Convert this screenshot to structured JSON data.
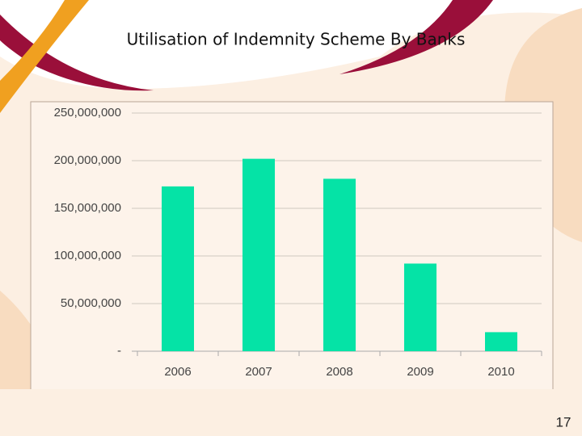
{
  "chart_data": {
    "type": "bar",
    "title": "Utilisation of Indemnity Scheme By Banks",
    "categories": [
      "2006",
      "2007",
      "2008",
      "2009",
      "2010"
    ],
    "values": [
      173000000,
      202000000,
      181000000,
      92000000,
      20000000
    ],
    "color": "#05e3a6",
    "ylim": [
      0,
      250000000
    ],
    "yticks": [
      {
        "value": 0,
        "label": "-"
      },
      {
        "value": 50000000,
        "label": "50,000,000"
      },
      {
        "value": 100000000,
        "label": "100,000,000"
      },
      {
        "value": 150000000,
        "label": "150,000,000"
      },
      {
        "value": 200000000,
        "label": "200,000,000"
      },
      {
        "value": 250000000,
        "label": "250,000,000"
      }
    ],
    "grid": true
  },
  "slide": {
    "page_number": "17"
  }
}
